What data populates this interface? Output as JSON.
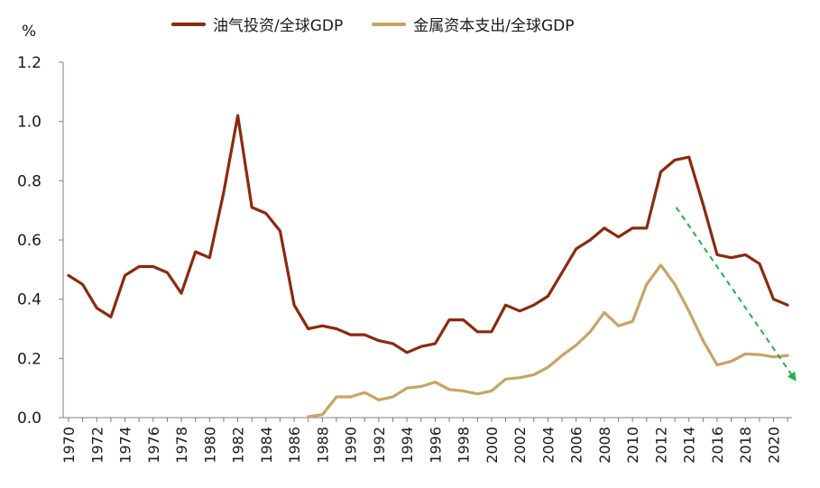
{
  "chart_data": {
    "type": "line",
    "ylabel": "%",
    "ylim": [
      0,
      1.2
    ],
    "yticks": [
      "0.0",
      "0.2",
      "0.4",
      "0.6",
      "0.8",
      "1.0",
      "1.2"
    ],
    "xlim": [
      1970,
      2021
    ],
    "xticks": [
      "1970",
      "1972",
      "1974",
      "1976",
      "1978",
      "1980",
      "1982",
      "1984",
      "1986",
      "1988",
      "1990",
      "1992",
      "1994",
      "1996",
      "1998",
      "2000",
      "2002",
      "2004",
      "2006",
      "2008",
      "2010",
      "2012",
      "2014",
      "2016",
      "2018",
      "2020"
    ],
    "series": [
      {
        "name": "油气投资/全球GDP",
        "color": "#8B2A0E",
        "x": [
          1970,
          1971,
          1972,
          1973,
          1974,
          1975,
          1976,
          1977,
          1978,
          1979,
          1980,
          1981,
          1982,
          1983,
          1984,
          1985,
          1986,
          1987,
          1988,
          1989,
          1990,
          1991,
          1992,
          1993,
          1994,
          1995,
          1996,
          1997,
          1998,
          1999,
          2000,
          2001,
          2002,
          2003,
          2004,
          2005,
          2006,
          2007,
          2008,
          2009,
          2010,
          2011,
          2012,
          2013,
          2014,
          2015,
          2016,
          2017,
          2018,
          2019,
          2020,
          2021
        ],
        "values": [
          0.48,
          0.45,
          0.37,
          0.34,
          0.48,
          0.51,
          0.51,
          0.49,
          0.42,
          0.56,
          0.54,
          0.76,
          1.02,
          0.71,
          0.69,
          0.63,
          0.38,
          0.3,
          0.31,
          0.3,
          0.28,
          0.28,
          0.26,
          0.25,
          0.22,
          0.24,
          0.25,
          0.33,
          0.33,
          0.29,
          0.29,
          0.38,
          0.36,
          0.38,
          0.41,
          0.49,
          0.57,
          0.6,
          0.64,
          0.61,
          0.64,
          0.64,
          0.83,
          0.87,
          0.88,
          0.72,
          0.55,
          0.54,
          0.55,
          0.52,
          0.4,
          0.38
        ]
      },
      {
        "name": "金属资本支出/全球GDP",
        "color": "#C8A464",
        "x": [
          1987,
          1988,
          1989,
          1990,
          1991,
          1992,
          1993,
          1994,
          1995,
          1996,
          1997,
          1998,
          1999,
          2000,
          2001,
          2002,
          2003,
          2004,
          2005,
          2006,
          2007,
          2008,
          2009,
          2010,
          2011,
          2012,
          2013,
          2014,
          2015,
          2016,
          2017,
          2018,
          2019,
          2020,
          2021
        ],
        "values": [
          0.003,
          0.01,
          0.07,
          0.07,
          0.085,
          0.06,
          0.07,
          0.1,
          0.105,
          0.12,
          0.095,
          0.09,
          0.08,
          0.09,
          0.13,
          0.135,
          0.145,
          0.17,
          0.21,
          0.245,
          0.29,
          0.355,
          0.31,
          0.325,
          0.45,
          0.515,
          0.45,
          0.36,
          0.26,
          0.178,
          0.19,
          0.215,
          0.213,
          0.205,
          0.21
        ]
      }
    ],
    "annotations": [
      {
        "type": "arrow",
        "style": "dashed",
        "color": "#22B04B",
        "from": [
          2013.1,
          0.71
        ],
        "to": [
          2021.5,
          0.13
        ]
      }
    ],
    "legend_position": "top"
  }
}
